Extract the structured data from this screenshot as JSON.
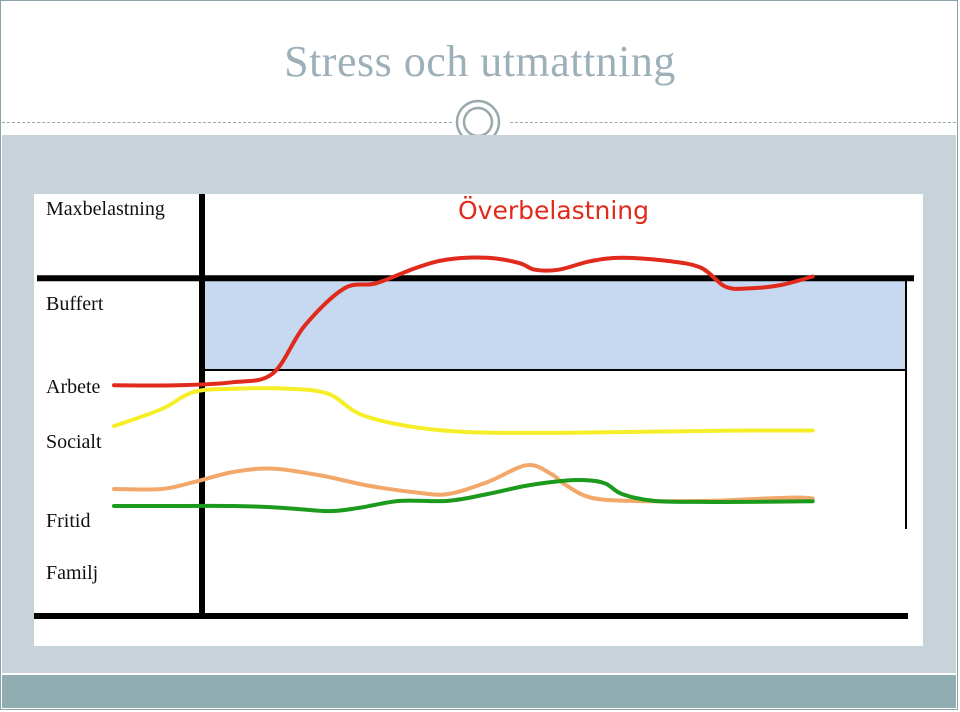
{
  "slide": {
    "title": "Stress och utmattning"
  },
  "chart_data": {
    "type": "line",
    "title": "",
    "xlabel": "",
    "ylabel": "",
    "grid": false,
    "zone_labels": {
      "overload": "Överbelastning"
    },
    "row_labels": [
      "Maxbelastning",
      "Buffert",
      "Arbete",
      "Socialt",
      "Fritid",
      "Familj"
    ],
    "colors": {
      "buffer_fill": "#c6d9f0",
      "arbete": "#e02a1c",
      "socialt": "#f5ee29",
      "fritid": "#f2a86a",
      "familj": "#1c9a1c",
      "overload_text": "#e02a1c"
    },
    "series": [
      {
        "key": "arbete",
        "values": [
          [
            0.0,
            0.55
          ],
          [
            0.08,
            0.55
          ],
          [
            0.15,
            0.64
          ],
          [
            0.2,
            0.9
          ],
          [
            0.24,
            2.3
          ],
          [
            0.29,
            3.4
          ],
          [
            0.33,
            3.55
          ],
          [
            0.38,
            4.0
          ],
          [
            0.42,
            4.25
          ],
          [
            0.47,
            4.3
          ],
          [
            0.51,
            4.15
          ],
          [
            0.53,
            3.95
          ],
          [
            0.56,
            3.95
          ],
          [
            0.6,
            4.2
          ],
          [
            0.64,
            4.3
          ],
          [
            0.7,
            4.2
          ],
          [
            0.74,
            4.0
          ],
          [
            0.77,
            3.45
          ],
          [
            0.8,
            3.4
          ],
          [
            0.84,
            3.5
          ],
          [
            0.88,
            3.75
          ]
        ]
      },
      {
        "key": "socialt",
        "values": [
          [
            0.0,
            -0.65
          ],
          [
            0.06,
            -0.15
          ],
          [
            0.1,
            0.35
          ],
          [
            0.15,
            0.45
          ],
          [
            0.22,
            0.45
          ],
          [
            0.27,
            0.3
          ],
          [
            0.31,
            -0.3
          ],
          [
            0.37,
            -0.65
          ],
          [
            0.44,
            -0.82
          ],
          [
            0.52,
            -0.85
          ],
          [
            0.62,
            -0.83
          ],
          [
            0.72,
            -0.8
          ],
          [
            0.8,
            -0.78
          ],
          [
            0.88,
            -0.78
          ]
        ]
      },
      {
        "key": "fritid",
        "values": [
          [
            0.0,
            -2.5
          ],
          [
            0.06,
            -2.5
          ],
          [
            0.1,
            -2.3
          ],
          [
            0.15,
            -2.0
          ],
          [
            0.2,
            -1.9
          ],
          [
            0.26,
            -2.1
          ],
          [
            0.32,
            -2.4
          ],
          [
            0.38,
            -2.6
          ],
          [
            0.42,
            -2.65
          ],
          [
            0.47,
            -2.3
          ],
          [
            0.52,
            -1.8
          ],
          [
            0.55,
            -2.05
          ],
          [
            0.57,
            -2.4
          ],
          [
            0.6,
            -2.75
          ],
          [
            0.65,
            -2.85
          ],
          [
            0.75,
            -2.85
          ],
          [
            0.8,
            -2.8
          ],
          [
            0.86,
            -2.75
          ],
          [
            0.88,
            -2.78
          ]
        ]
      },
      {
        "key": "familj",
        "values": [
          [
            0.0,
            -3.0
          ],
          [
            0.06,
            -3.0
          ],
          [
            0.15,
            -3.0
          ],
          [
            0.21,
            -3.05
          ],
          [
            0.27,
            -3.15
          ],
          [
            0.31,
            -3.05
          ],
          [
            0.36,
            -2.85
          ],
          [
            0.42,
            -2.85
          ],
          [
            0.47,
            -2.65
          ],
          [
            0.52,
            -2.4
          ],
          [
            0.57,
            -2.25
          ],
          [
            0.6,
            -2.25
          ],
          [
            0.62,
            -2.35
          ],
          [
            0.64,
            -2.65
          ],
          [
            0.68,
            -2.85
          ],
          [
            0.74,
            -2.88
          ],
          [
            0.8,
            -2.88
          ],
          [
            0.88,
            -2.86
          ]
        ]
      }
    ],
    "bands": {
      "max_line": 3.7,
      "buffer_top": 3.7,
      "buffer_bottom": 1.0,
      "base_line": -3.5
    }
  }
}
